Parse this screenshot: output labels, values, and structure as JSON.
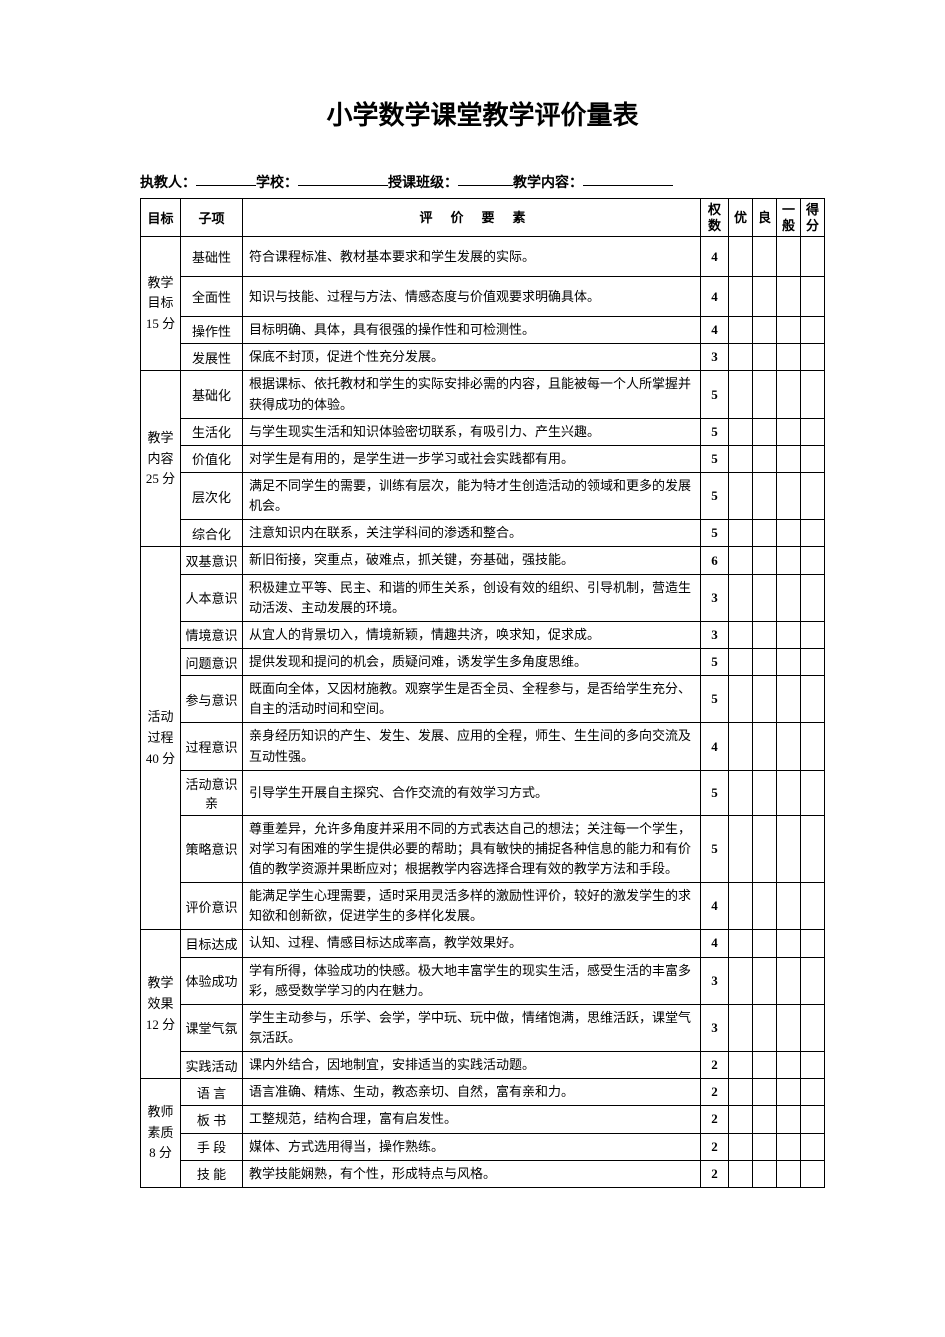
{
  "title": "小学数学课堂教学评价量表",
  "fields": {
    "teacher_label": "执教人：",
    "school_label": "学校：",
    "class_label": "授课班级：",
    "content_label": "教学内容："
  },
  "headers": {
    "goal": "目标",
    "sub": "子项",
    "desc": "评价要素",
    "weight": "权数",
    "excellent": "优",
    "good": "良",
    "normal": "一般",
    "score": "得分"
  },
  "groups": [
    {
      "goal": "教学目标",
      "score_label": "15 分",
      "rows": [
        {
          "sub": "基础性",
          "desc": "符合课程标准、教材基本要求和学生发展的实际。",
          "w": 4,
          "h": "ht-m"
        },
        {
          "sub": "全面性",
          "desc": "知识与技能、过程与方法、情感态度与价值观要求明确具体。",
          "w": 4,
          "h": "ht-m"
        },
        {
          "sub": "操作性",
          "desc": "目标明确、具体，具有很强的操作性和可检测性。",
          "w": 4,
          "h": "ht-s"
        },
        {
          "sub": "发展性",
          "desc": "保底不封顶，促进个性充分发展。",
          "w": 3,
          "h": "ht-s"
        }
      ]
    },
    {
      "goal": "教学内容",
      "score_label": "25 分",
      "rows": [
        {
          "sub": "基础化",
          "desc": "根据课标、依托教材和学生的实际安排必需的内容，且能被每一个人所掌握并获得成功的体验。",
          "w": 5,
          "h": "ht-m"
        },
        {
          "sub": "生活化",
          "desc": "与学生现实生活和知识体验密切联系，有吸引力、产生兴趣。",
          "w": 5,
          "h": "ht-s"
        },
        {
          "sub": "价值化",
          "desc": "对学生是有用的，是学生进一步学习或社会实践都有用。",
          "w": 5,
          "h": "ht-s"
        },
        {
          "sub": "层次化",
          "desc": "满足不同学生的需要，训练有层次，能为特才生创造活动的领域和更多的发展机会。",
          "w": 5,
          "h": "ht-m"
        },
        {
          "sub": "综合化",
          "desc": "注意知识内在联系，关注学科间的渗透和整合。",
          "w": 5,
          "h": "ht-s"
        }
      ]
    },
    {
      "goal": "活动过程",
      "score_label": "40 分",
      "rows": [
        {
          "sub": "双基意识",
          "desc": "新旧衔接，突重点，破难点，抓关键，夯基础，强技能。",
          "w": 6,
          "h": "ht-s"
        },
        {
          "sub": "人本意识",
          "desc": "积极建立平等、民主、和谐的师生关系，创设有效的组织、引导机制，营造生动活泼、主动发展的环境。",
          "w": 3,
          "h": "ht-m"
        },
        {
          "sub": "情境意识",
          "desc": "从宜人的背景切入，情境新颖，情趣共济，唤求知，促求成。",
          "w": 3,
          "h": "ht-s"
        },
        {
          "sub": "问题意识",
          "desc": "提供发现和提问的机会，质疑问难，诱发学生多角度思维。",
          "w": 5,
          "h": "ht-s"
        },
        {
          "sub": "参与意识",
          "desc": "既面向全体，又因材施教。观察学生是否全员、全程参与，是否给学生充分、自主的活动时间和空间。",
          "w": 5,
          "h": "ht-m"
        },
        {
          "sub": "过程意识",
          "desc": "亲身经历知识的产生、发生、发展、应用的全程，师生、生生间的多向交流及互动性强。",
          "w": 4,
          "h": "ht-m"
        },
        {
          "sub": "活动意识亲",
          "desc": "引导学生开展自主探究、合作交流的有效学习方式。",
          "w": 5,
          "h": "ht-s"
        },
        {
          "sub": "策略意识",
          "desc": "尊重差异，允许多角度并采用不同的方式表达自己的想法；关注每一个学生，对学习有困难的学生提供必要的帮助；具有敏快的捕捉各种信息的能力和有价值的教学资源并果断应对；根据教学内容选择合理有效的教学方法和手段。",
          "w": 5,
          "h": ""
        },
        {
          "sub": "评价意识",
          "desc": "能满足学生心理需要，适时采用灵活多样的激励性评价，较好的激发学生的求知欲和创新欲，促进学生的多样化发展。",
          "w": 4,
          "h": "ht-m"
        }
      ]
    },
    {
      "goal": "教学效果",
      "score_label": "12 分",
      "rows": [
        {
          "sub": "目标达成",
          "desc": "认知、过程、情感目标达成率高，教学效果好。",
          "w": 4,
          "h": "ht-s"
        },
        {
          "sub": "体验成功",
          "desc": "学有所得，体验成功的快感。极大地丰富学生的现实生活，感受生活的丰富多彩，感受数学学习的内在魅力。",
          "w": 3,
          "h": "ht-m"
        },
        {
          "sub": "课堂气氛",
          "desc": "学生主动参与，乐学、会学，学中玩、玩中做，情绪饱满，思维活跃，课堂气氛活跃。",
          "w": 3,
          "h": "ht-m"
        },
        {
          "sub": "实践活动",
          "desc": "课内外结合，因地制宜，安排适当的实践活动题。",
          "w": 2,
          "h": "ht-s"
        }
      ]
    },
    {
      "goal": "教师素质",
      "score_label": "8 分",
      "rows": [
        {
          "sub": "语 言",
          "desc": "语言准确、精炼、生动，教态亲切、自然，富有亲和力。",
          "w": 2,
          "h": "ht-s"
        },
        {
          "sub": "板 书",
          "desc": "工整规范，结构合理，富有启发性。",
          "w": 2,
          "h": "ht-s"
        },
        {
          "sub": "手 段",
          "desc": "媒体、方式选用得当，操作熟练。",
          "w": 2,
          "h": "ht-s"
        },
        {
          "sub": "技 能",
          "desc": "教学技能娴熟，有个性，形成特点与风格。",
          "w": 2,
          "h": "ht-s"
        }
      ]
    }
  ]
}
